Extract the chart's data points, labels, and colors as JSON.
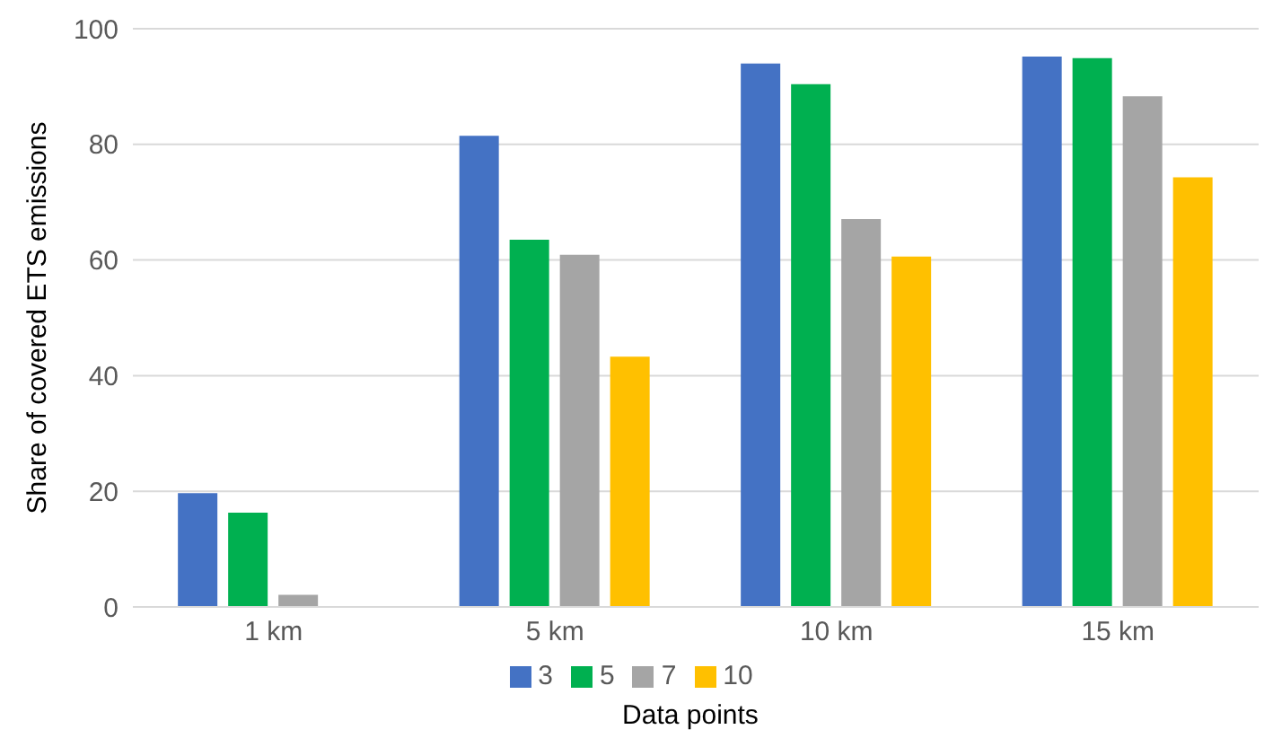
{
  "chart_data": {
    "type": "bar",
    "ylabel": "Share of covered ETS emissions",
    "xlabel": "Data points",
    "categories": [
      "1 km",
      "5 km",
      "10 km",
      "15 km"
    ],
    "series": [
      {
        "name": "3",
        "color": "#4472c4",
        "values": [
          19.7,
          81.5,
          94.0,
          95.2
        ]
      },
      {
        "name": "5",
        "color": "#00b050",
        "values": [
          16.3,
          63.5,
          90.4,
          94.9
        ]
      },
      {
        "name": "7",
        "color": "#a5a5a5",
        "values": [
          2.1,
          60.9,
          67.1,
          88.3
        ]
      },
      {
        "name": "10",
        "color": "#ffc000",
        "values": [
          0,
          43.3,
          60.6,
          74.3
        ]
      }
    ],
    "ylim": [
      0,
      100
    ],
    "yticks": [
      0,
      20,
      40,
      60,
      80,
      100
    ],
    "grid": "y",
    "legend": "bottom"
  }
}
